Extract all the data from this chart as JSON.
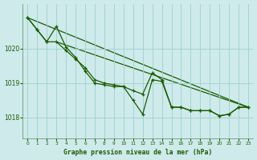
{
  "title": "Graphe pression niveau de la mer (hPa)",
  "bg_color": "#ceeaea",
  "grid_color": "#9fcfcf",
  "line_color": "#1a5c00",
  "xlim": [
    -0.5,
    23.5
  ],
  "ylim": [
    1017.4,
    1021.3
  ],
  "yticks": [
    1018,
    1019,
    1020
  ],
  "xticks": [
    0,
    1,
    2,
    3,
    4,
    5,
    6,
    7,
    8,
    9,
    10,
    11,
    12,
    13,
    14,
    15,
    16,
    17,
    18,
    19,
    20,
    21,
    22,
    23
  ],
  "series_jagged": [
    1020.9,
    1020.55,
    1020.2,
    1020.65,
    1020.05,
    1019.75,
    1019.35,
    1019.0,
    1018.95,
    1018.9,
    1018.9,
    1018.5,
    1018.1,
    1019.1,
    1019.05,
    1018.3,
    1018.3,
    1018.2,
    1018.2,
    1018.2,
    1018.05,
    1018.1,
    1018.3,
    1018.3
  ],
  "series_smooth": [
    1020.9,
    1020.55,
    1020.2,
    1020.2,
    1019.95,
    1019.7,
    1019.45,
    1019.1,
    1019.0,
    1018.95,
    1018.9,
    1018.78,
    1018.68,
    1019.3,
    1019.1,
    1018.3,
    1018.3,
    1018.2,
    1018.2,
    1018.2,
    1018.05,
    1018.1,
    1018.3,
    1018.3
  ],
  "trend1_x": [
    0,
    23
  ],
  "trend1_y": [
    1020.9,
    1018.3
  ],
  "trend2_x": [
    3,
    23
  ],
  "trend2_y": [
    1020.2,
    1018.3
  ]
}
